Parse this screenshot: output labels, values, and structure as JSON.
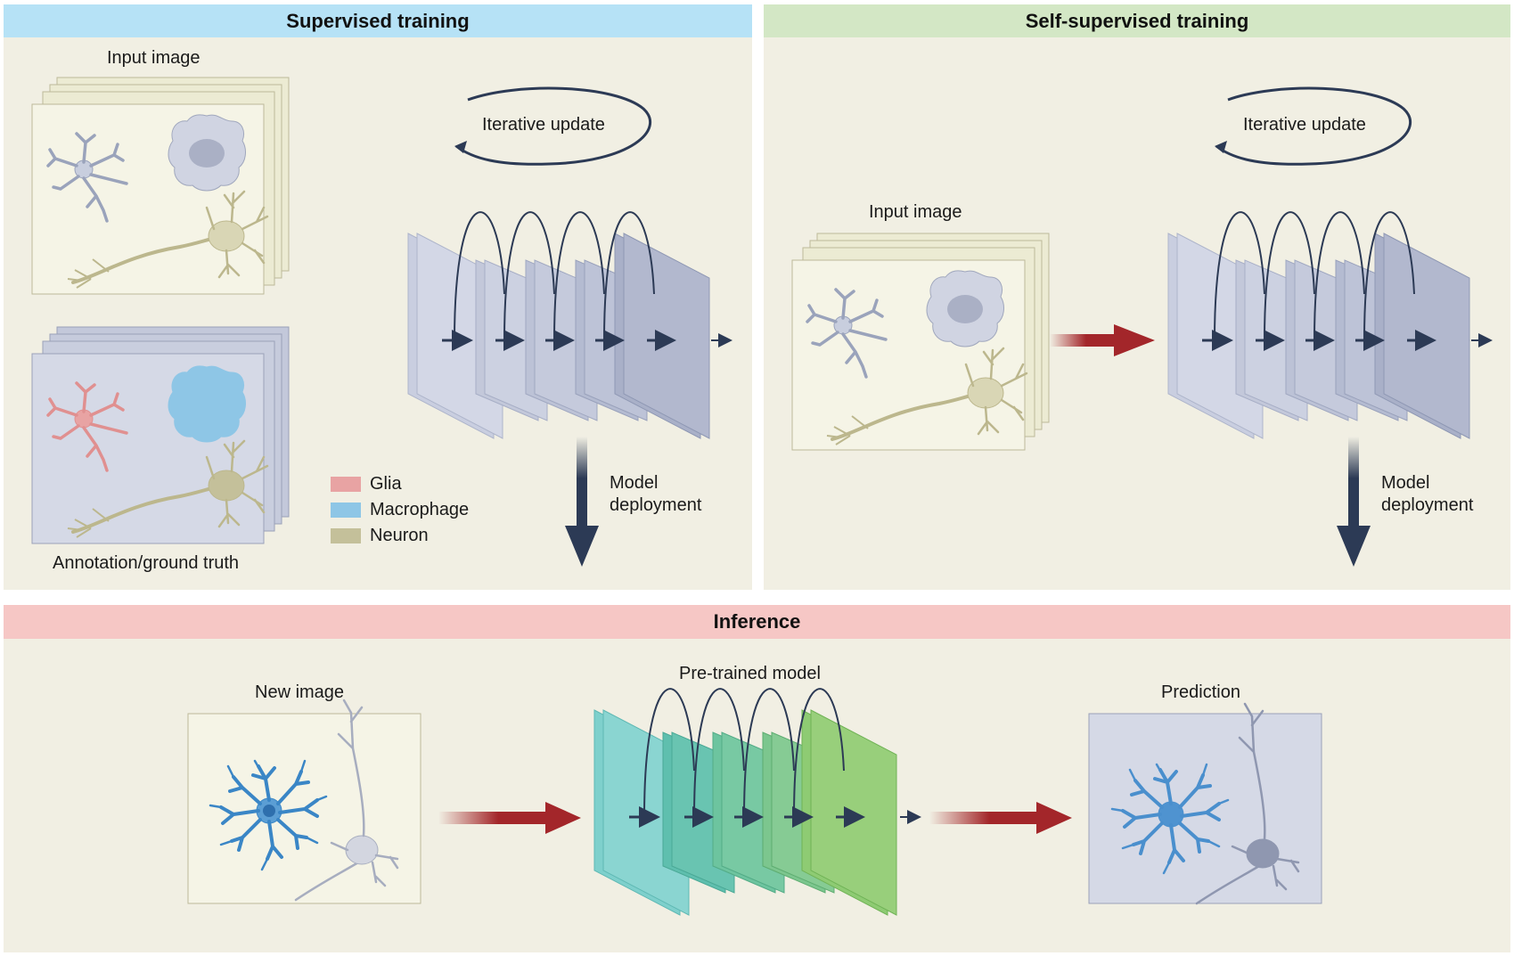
{
  "supervised": {
    "title": "Supervised training",
    "input_label": "Input image",
    "annotation_label": "Annotation/ground truth",
    "iterative_label": "Iterative update",
    "deploy_line1": "Model",
    "deploy_line2": "deployment",
    "legend": [
      {
        "label": "Glia",
        "color": "#e8a3a3"
      },
      {
        "label": "Macrophage",
        "color": "#8ec6e6"
      },
      {
        "label": "Neuron",
        "color": "#c4c09a"
      }
    ]
  },
  "self_supervised": {
    "title": "Self-supervised training",
    "input_label": "Input image",
    "iterative_label": "Iterative update",
    "deploy_line1": "Model",
    "deploy_line2": "deployment"
  },
  "inference": {
    "title": "Inference",
    "new_image_label": "New image",
    "model_label": "Pre-trained model",
    "prediction_label": "Prediction"
  },
  "colors": {
    "supervised_header": "#b6e2f6",
    "self_header": "#d3e7c5",
    "inference_header": "#f6c7c5",
    "panel_bg": "#f1efe3",
    "arrow_red": "#a3262a",
    "arrow_navy": "#2c3a55",
    "layer_blue": "#c3c8da",
    "layer_teal_start": "#8fd5d2",
    "layer_green_end": "#98cf7b"
  }
}
